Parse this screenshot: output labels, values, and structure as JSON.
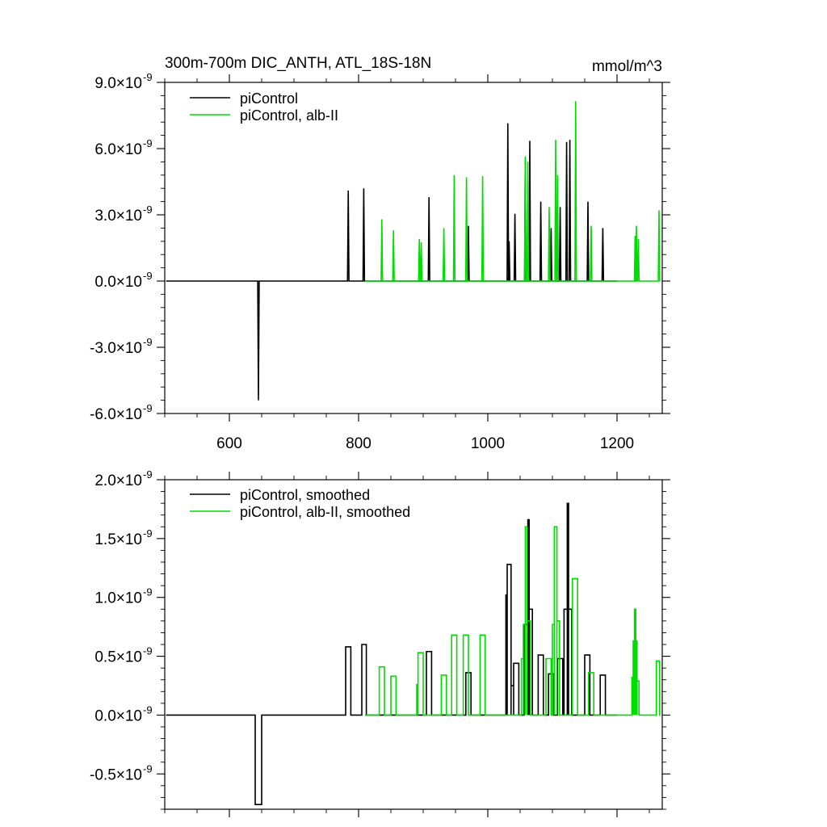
{
  "chart_data": [
    {
      "type": "line",
      "title": "300m-700m DIC_ANTH, ATL_18S-18N",
      "units": "mmol/m^3",
      "xlim": [
        500,
        1270
      ],
      "ylim": [
        -6e-09,
        9e-09
      ],
      "x_ticks": [
        600,
        800,
        1000,
        1200
      ],
      "x_tick_labels": [
        "600",
        "800",
        "1000",
        "1200"
      ],
      "y_ticks": [
        -6e-09,
        -3e-09,
        0.0,
        3e-09,
        6e-09,
        9e-09
      ],
      "y_tick_mantissas": [
        "-6.0",
        "-3.0",
        "0.0",
        "3.0",
        "6.0",
        "9.0"
      ],
      "y_tick_times": "×10",
      "y_tick_exp": "-9",
      "legend_position": "top-left",
      "series": [
        {
          "name": "piControl",
          "color": "#000000",
          "x_start": 502,
          "x_end": 1200,
          "spikes": [
            [
              645,
              -5.4e-09
            ],
            [
              784,
              4.1e-09
            ],
            [
              808,
              4.2e-09
            ],
            [
              909,
              3.8e-09
            ],
            [
              970,
              2.5e-09
            ],
            [
              1031,
              7.15e-09
            ],
            [
              1033,
              1.8e-09
            ],
            [
              1042,
              3.05e-09
            ],
            [
              1058,
              5.5e-09
            ],
            [
              1065,
              6.35e-09
            ],
            [
              1082,
              3.6e-09
            ],
            [
              1098,
              2.4e-09
            ],
            [
              1112,
              3.35e-09
            ],
            [
              1122,
              6.3e-09
            ],
            [
              1127,
              6.4e-09
            ],
            [
              1155,
              3.6e-09
            ],
            [
              1178,
              2.4e-09
            ]
          ]
        },
        {
          "name": "piControl, alb-II",
          "color": "#00dd00",
          "x_start": 810,
          "x_end": 1267,
          "spikes": [
            [
              836,
              2.8e-09
            ],
            [
              854,
              2.3e-09
            ],
            [
              894,
              1.9e-09
            ],
            [
              897,
              1.75e-09
            ],
            [
              932,
              2.4e-09
            ],
            [
              948,
              4.8e-09
            ],
            [
              967,
              4.7e-09
            ],
            [
              992,
              4.75e-09
            ],
            [
              1058,
              5.65e-09
            ],
            [
              1062,
              5.4e-09
            ],
            [
              1095,
              3.35e-09
            ],
            [
              1105,
              6.4e-09
            ],
            [
              1108,
              4.8e-09
            ],
            [
              1136,
              8.15e-09
            ],
            [
              1160,
              2.5e-09
            ],
            [
              1228,
              2.05e-09
            ],
            [
              1230,
              2.5e-09
            ],
            [
              1233,
              1.9e-09
            ],
            [
              1265,
              3.2e-09
            ]
          ]
        }
      ]
    },
    {
      "type": "line",
      "xlim": [
        500,
        1270
      ],
      "ylim": [
        -8e-10,
        2e-09
      ],
      "x_ticks": [
        600,
        800,
        1000,
        1200
      ],
      "y_ticks": [
        -5e-10,
        0.0,
        5e-10,
        1e-09,
        1.5e-09,
        2e-09
      ],
      "y_tick_mantissas": [
        "-0.5",
        "0.0",
        "0.5",
        "1.0",
        "1.5",
        "2.0"
      ],
      "y_tick_times": "×10",
      "y_tick_exp": "-9",
      "legend_position": "top-left",
      "series": [
        {
          "name": "piControl, smoothed",
          "color": "#000000",
          "x_start": 502,
          "x_end": 1200,
          "pulses": [
            [
              640,
              650,
              -7.6e-10
            ],
            [
              780,
              788,
              5.8e-10
            ],
            [
              805,
              812,
              6e-10
            ],
            [
              905,
              913,
              5.4e-10
            ],
            [
              966,
              974,
              3.6e-10
            ],
            [
              1028,
              1030,
              1.02e-09
            ],
            [
              1030,
              1036,
              1.28e-09
            ],
            [
              1036,
              1040,
              2.5e-10
            ],
            [
              1040,
              1048,
              4.4e-10
            ],
            [
              1056,
              1062,
              7.7e-10
            ],
            [
              1062,
              1064,
              1.66e-09
            ],
            [
              1064,
              1069,
              9e-10
            ],
            [
              1078,
              1086,
              5.1e-10
            ],
            [
              1094,
              1102,
              3.5e-10
            ],
            [
              1108,
              1116,
              4.8e-10
            ],
            [
              1118,
              1123,
              9e-10
            ],
            [
              1123,
              1125,
              1.8e-09
            ],
            [
              1125,
              1130,
              9e-10
            ],
            [
              1150,
              1158,
              5.1e-10
            ],
            [
              1174,
              1182,
              3.4e-10
            ]
          ]
        },
        {
          "name": "piControl, alb-II, smoothed",
          "color": "#00dd00",
          "x_start": 810,
          "x_end": 1267,
          "pulses": [
            [
              832,
              840,
              4.1e-10
            ],
            [
              850,
              858,
              3.3e-10
            ],
            [
              890,
              892,
              2.6e-10
            ],
            [
              892,
              900,
              5.3e-10
            ],
            [
              928,
              936,
              3.4e-10
            ],
            [
              944,
              952,
              6.8e-10
            ],
            [
              962,
              970,
              6.8e-10
            ],
            [
              988,
              996,
              6.8e-10
            ],
            [
              1052,
              1055,
              4.8e-10
            ],
            [
              1055,
              1058,
              7.7e-10
            ],
            [
              1058,
              1061,
              1.6e-09
            ],
            [
              1061,
              1066,
              8e-10
            ],
            [
              1090,
              1098,
              4.8e-10
            ],
            [
              1100,
              1103,
              7.7e-10
            ],
            [
              1103,
              1107,
              1.6e-09
            ],
            [
              1107,
              1111,
              8e-10
            ],
            [
              1131,
              1139,
              1.16e-09
            ],
            [
              1156,
              1164,
              3.6e-10
            ],
            [
              1223,
              1225,
              3.2e-10
            ],
            [
              1225,
              1227,
              6.3e-10
            ],
            [
              1227,
              1229,
              9e-10
            ],
            [
              1229,
              1231,
              6.3e-10
            ],
            [
              1231,
              1234,
              2.9e-10
            ],
            [
              1261,
              1266,
              4.6e-10
            ]
          ]
        }
      ]
    }
  ]
}
